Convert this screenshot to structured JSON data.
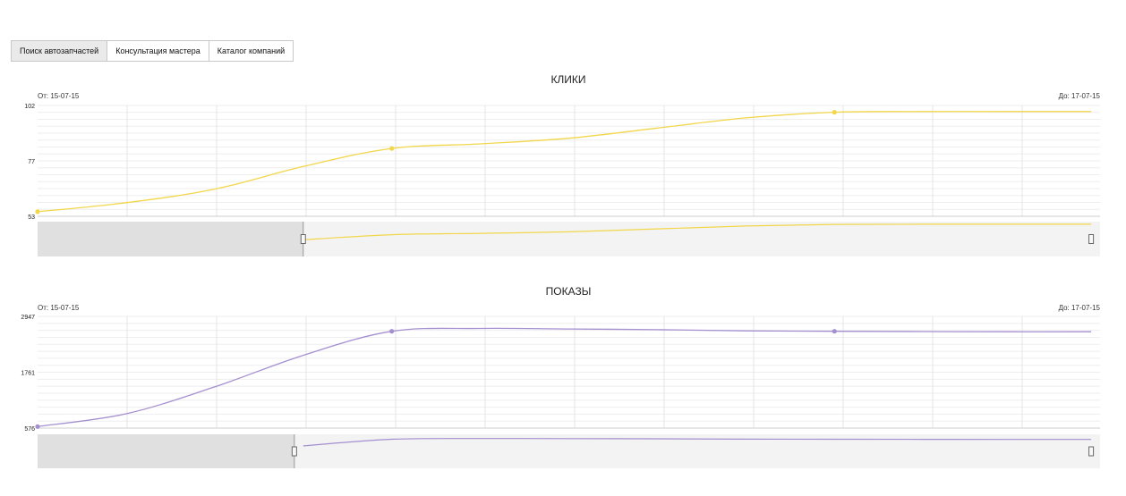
{
  "tabs": [
    {
      "label": "Поиск автозапчастей",
      "active": true
    },
    {
      "label": "Консультация мастера",
      "active": false
    },
    {
      "label": "Каталог компаний",
      "active": false
    }
  ],
  "chart_data": [
    {
      "type": "line",
      "title": "КЛИКИ",
      "range_from": "От: 15-07-15",
      "range_to": "До: 17-07-15",
      "y_ticks": [
        "102",
        "77",
        "53"
      ],
      "ylim": [
        53,
        102
      ],
      "color": "#f2d64b",
      "series": [
        {
          "points": [
            [
              0,
              55
            ],
            [
              0.5,
              59
            ],
            [
              1.0,
              65
            ],
            [
              1.5,
              75
            ],
            [
              2.0,
              83
            ],
            [
              2.5,
              85
            ],
            [
              3.0,
              87.5
            ],
            [
              3.5,
              92
            ],
            [
              4.0,
              96.5
            ],
            [
              4.5,
              99
            ],
            [
              5.0,
              99.3
            ],
            [
              5.5,
              99.3
            ],
            [
              5.95,
              99.3
            ]
          ],
          "markers": [
            0,
            4,
            9
          ]
        }
      ],
      "navigator": {
        "selection": [
          1.5,
          5.95
        ]
      }
    },
    {
      "type": "line",
      "title": "ПОКАЗЫ",
      "range_from": "От: 15-07-15",
      "range_to": "До: 17-07-15",
      "y_ticks": [
        "2947",
        "1761",
        "576"
      ],
      "ylim": [
        576,
        2947
      ],
      "color": "#a48fd0",
      "series": [
        {
          "points": [
            [
              0,
              608
            ],
            [
              0.5,
              880
            ],
            [
              1.0,
              1450
            ],
            [
              1.5,
              2120
            ],
            [
              2.0,
              2630
            ],
            [
              2.5,
              2690
            ],
            [
              3.0,
              2680
            ],
            [
              3.5,
              2665
            ],
            [
              4.0,
              2640
            ],
            [
              4.5,
              2630
            ],
            [
              5.0,
              2625
            ],
            [
              5.5,
              2620
            ],
            [
              5.95,
              2620
            ]
          ],
          "markers": [
            0,
            4,
            9
          ]
        }
      ],
      "navigator": {
        "selection": [
          1.45,
          5.95
        ]
      }
    }
  ]
}
